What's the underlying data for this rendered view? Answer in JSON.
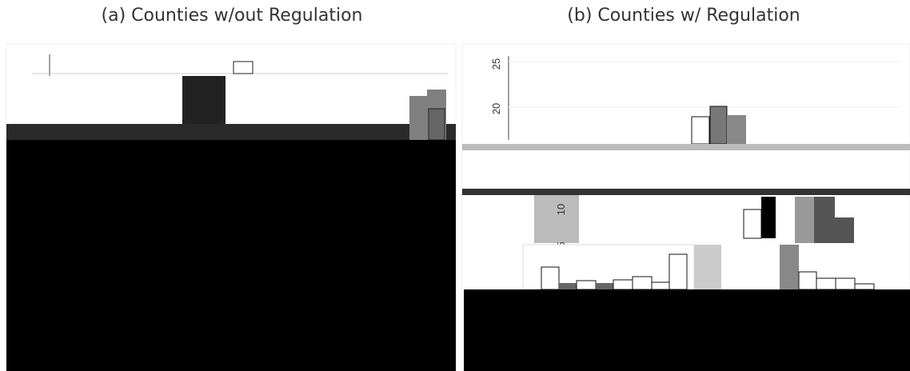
{
  "panels": [
    {
      "title": "(a) Counties w/out Regulation"
    },
    {
      "title": "(b) Counties w/ Regulation",
      "ticks": [
        "25",
        "20",
        "10",
        "5"
      ]
    }
  ]
}
